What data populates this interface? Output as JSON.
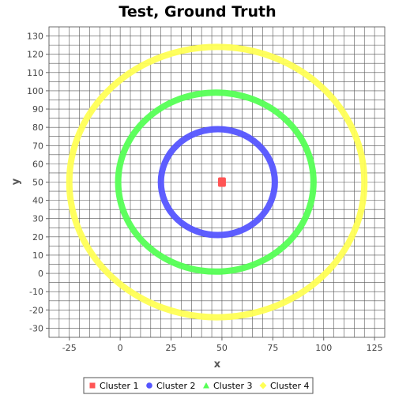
{
  "chart_data": {
    "type": "scatter",
    "title": "Test, Ground Truth",
    "xlabel": "x",
    "ylabel": "y",
    "xlim": [
      -35,
      130
    ],
    "ylim": [
      -35,
      135
    ],
    "xticks": [
      -25,
      0,
      25,
      50,
      75,
      100,
      125
    ],
    "yticks": [
      -30,
      -20,
      -10,
      0,
      10,
      20,
      30,
      40,
      50,
      60,
      70,
      80,
      90,
      100,
      110,
      120,
      130
    ],
    "grid": true,
    "legend_position": "bottom",
    "series": [
      {
        "name": "Cluster 1",
        "color": "#ff5555",
        "marker": "square",
        "shape": "point-cluster",
        "center": [
          50,
          50
        ],
        "radius": 1
      },
      {
        "name": "Cluster 2",
        "color": "#5555ff",
        "marker": "circle",
        "shape": "ring",
        "center": [
          48,
          50
        ],
        "rx": 28,
        "ry": 29
      },
      {
        "name": "Cluster 3",
        "color": "#55ff55",
        "marker": "triangle",
        "shape": "ring",
        "center": [
          47,
          50
        ],
        "rx": 48,
        "ry": 49
      },
      {
        "name": "Cluster 4",
        "color": "#ffff55",
        "marker": "diamond",
        "shape": "ring",
        "center": [
          47.5,
          50
        ],
        "rx": 72.5,
        "ry": 74
      }
    ]
  }
}
